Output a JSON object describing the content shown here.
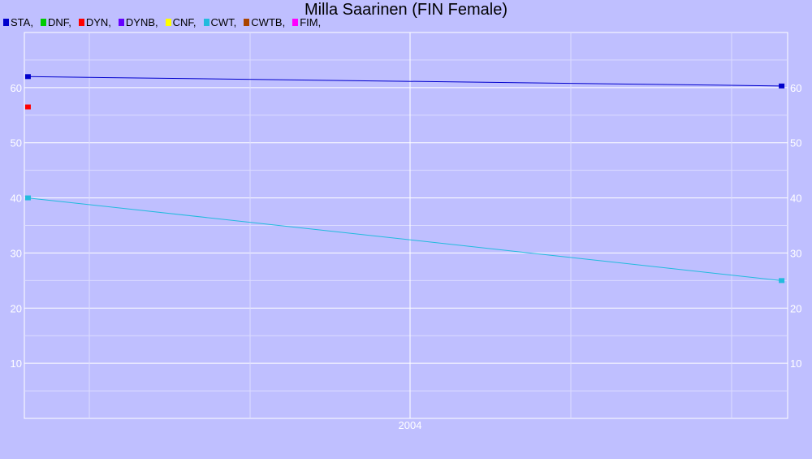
{
  "chart_data": {
    "type": "line",
    "title": "Milla Saarinen (FIN Female)",
    "xlabel": "",
    "ylabel": "",
    "x_tick_labels": [
      "2004"
    ],
    "ylim": [
      0,
      70
    ],
    "y_ticks": [
      10,
      20,
      30,
      40,
      50,
      60
    ],
    "grid": true,
    "legend": [
      {
        "label": "STA,",
        "color": "#0000cc"
      },
      {
        "label": "DNF,",
        "color": "#00cc00"
      },
      {
        "label": "DYN,",
        "color": "#ff0000"
      },
      {
        "label": "DYNB,",
        "color": "#6600ff"
      },
      {
        "label": "CNF,",
        "color": "#ffff00"
      },
      {
        "label": "CWT,",
        "color": "#22bbdd"
      },
      {
        "label": "CWTB,",
        "color": "#aa4400"
      },
      {
        "label": "FIM,",
        "color": "#ff00ff"
      }
    ],
    "series": [
      {
        "name": "STA",
        "color": "#0000cc",
        "points": [
          {
            "x": 2003.0,
            "y": 62
          },
          {
            "x": 2005.35,
            "y": 60.3
          }
        ]
      },
      {
        "name": "DYN",
        "color": "#ff0000",
        "points": [
          {
            "x": 2003.0,
            "y": 56.5
          }
        ]
      },
      {
        "name": "CWT",
        "color": "#22bbdd",
        "points": [
          {
            "x": 2003.0,
            "y": 40
          },
          {
            "x": 2005.35,
            "y": 25
          }
        ]
      }
    ],
    "xlim": [
      2002.99,
      2005.37
    ]
  }
}
